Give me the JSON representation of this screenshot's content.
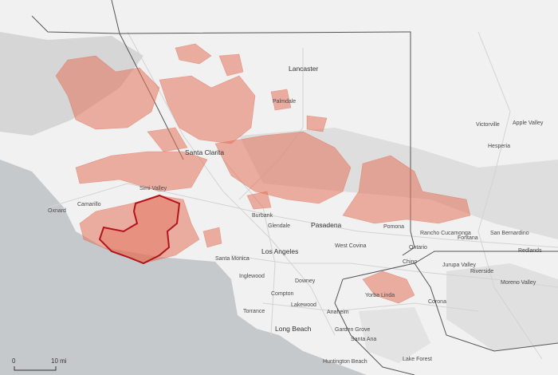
{
  "places": [
    {
      "name": "Lancaster"
    },
    {
      "name": "Palmdale"
    },
    {
      "name": "Santa Clarita"
    },
    {
      "name": "Simi Valley"
    },
    {
      "name": "Camarillo"
    },
    {
      "name": "Oxnard"
    },
    {
      "name": "Burbank"
    },
    {
      "name": "Glendale"
    },
    {
      "name": "Pasadena"
    },
    {
      "name": "Los Angeles"
    },
    {
      "name": "Santa Monica"
    },
    {
      "name": "Inglewood"
    },
    {
      "name": "Downey"
    },
    {
      "name": "Compton"
    },
    {
      "name": "Torrance"
    },
    {
      "name": "Lakewood"
    },
    {
      "name": "Long Beach"
    },
    {
      "name": "Anaheim"
    },
    {
      "name": "Garden Grove"
    },
    {
      "name": "Santa Ana"
    },
    {
      "name": "Huntington Beach"
    },
    {
      "name": "Lake Forest"
    },
    {
      "name": "Yorba Linda"
    },
    {
      "name": "Pomona"
    },
    {
      "name": "West Covina"
    },
    {
      "name": "Chino"
    },
    {
      "name": "Ontario"
    },
    {
      "name": "Rancho Cucamonga"
    },
    {
      "name": "Fontana"
    },
    {
      "name": "San Bernardino"
    },
    {
      "name": "Redlands"
    },
    {
      "name": "Riverside"
    },
    {
      "name": "Moreno Valley"
    },
    {
      "name": "Corona"
    },
    {
      "name": "Jurupa Valley"
    },
    {
      "name": "Victorville"
    },
    {
      "name": "Apple Valley"
    },
    {
      "name": "Hesperia"
    }
  ],
  "scale_bar": {
    "start": "0",
    "end": "10 mi"
  }
}
